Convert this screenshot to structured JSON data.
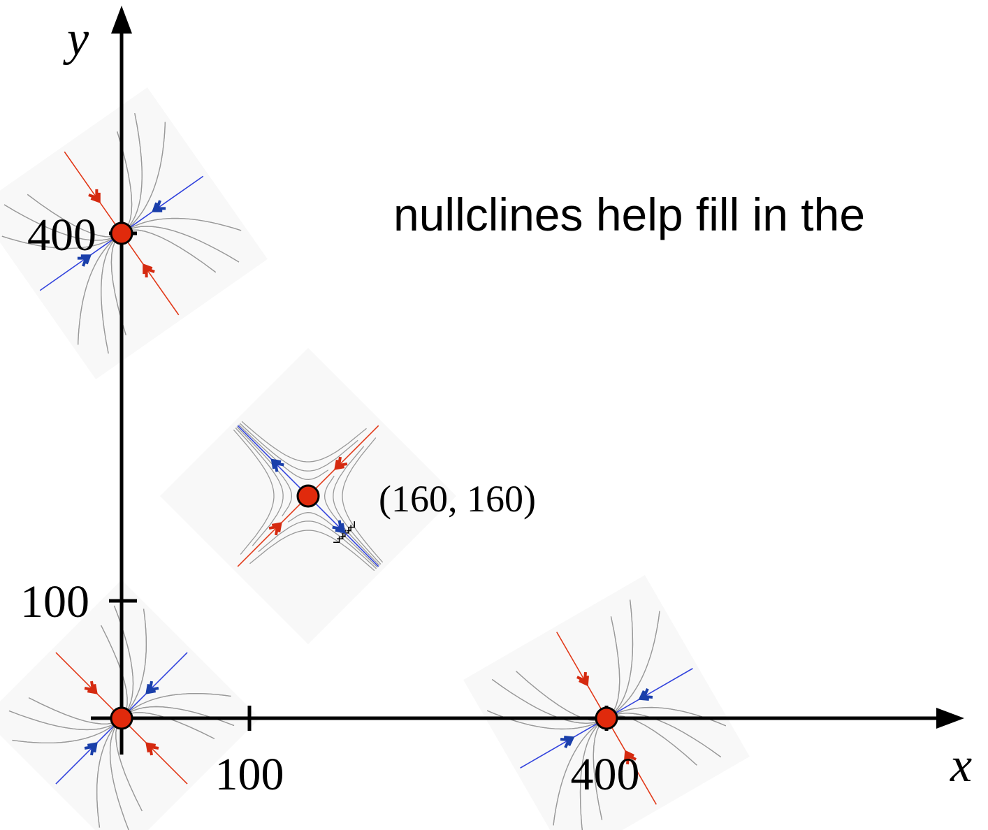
{
  "axes": {
    "x_label": "x",
    "y_label": "y",
    "x_ticks": [
      "100",
      "400"
    ],
    "y_ticks": [
      "100",
      "400"
    ]
  },
  "annotation": "nullclines help fill in the",
  "point_label": "(160, 160)"
}
